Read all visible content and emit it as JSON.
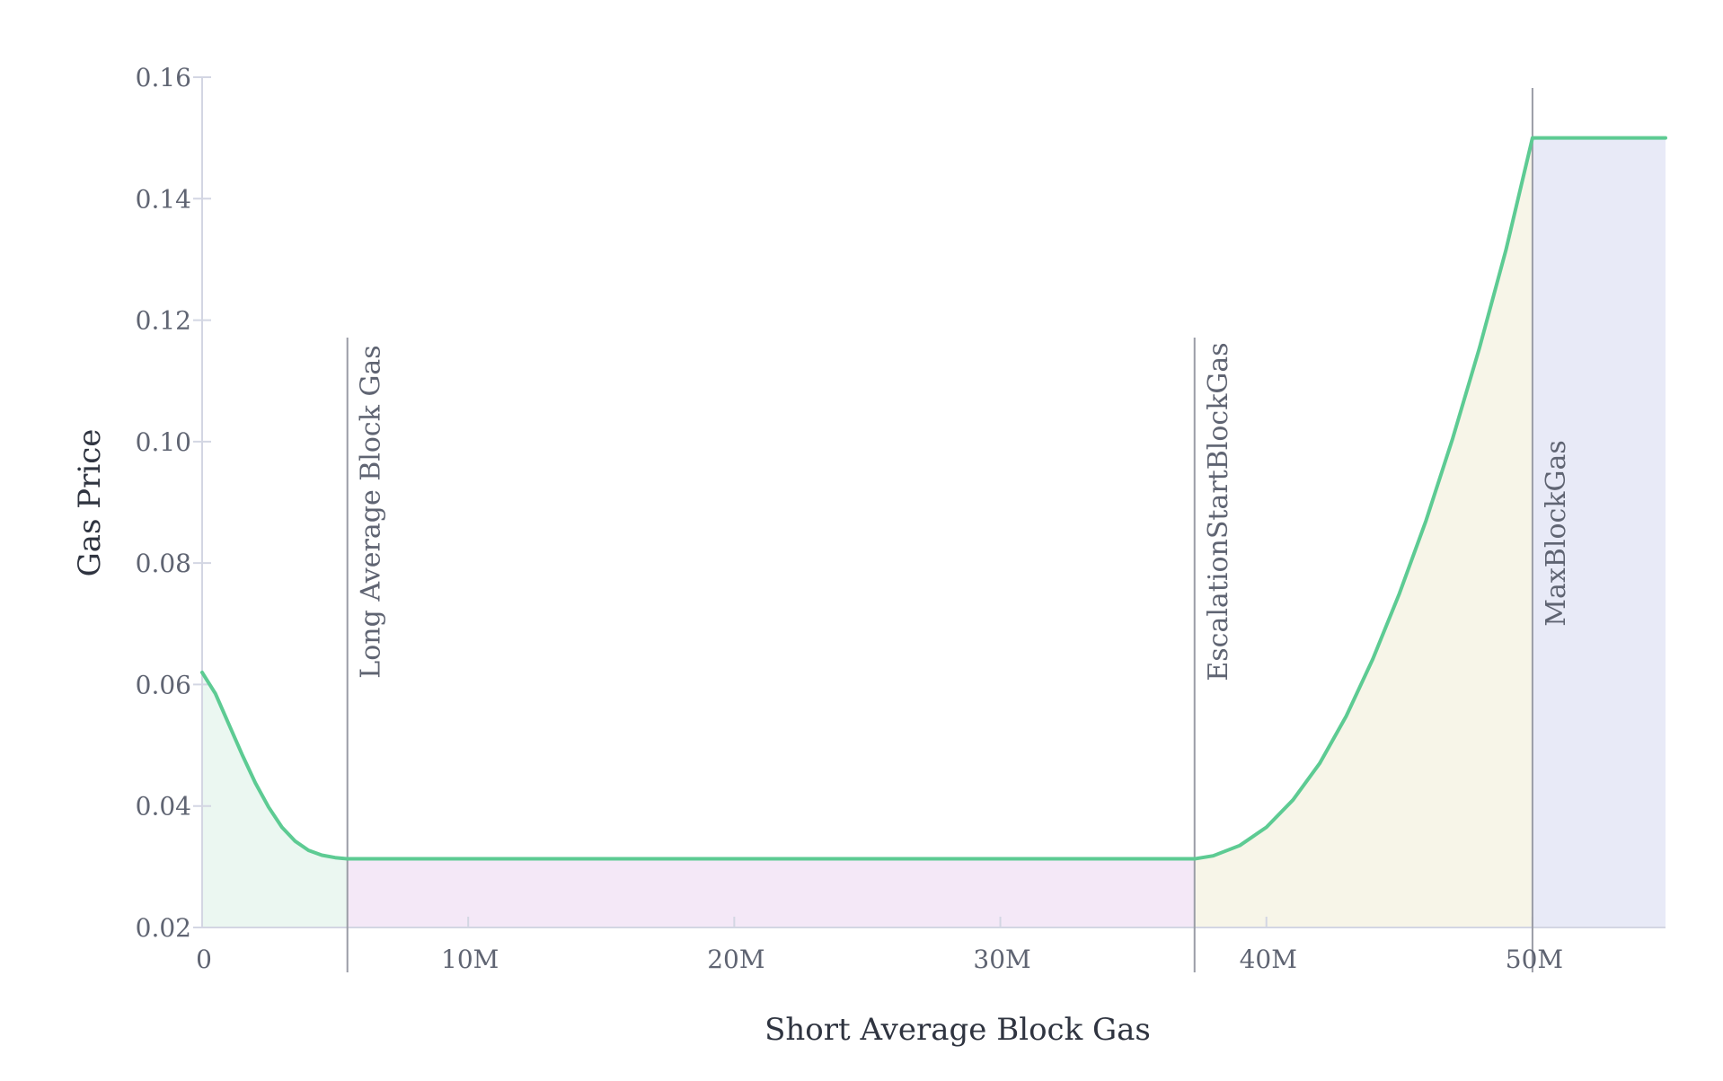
{
  "chart_data": {
    "type": "line",
    "xlabel": "Short Average Block Gas",
    "ylabel": "Gas Price",
    "xlim": [
      0,
      55000000
    ],
    "ylim": [
      0.02,
      0.16
    ],
    "x_ticks": [
      {
        "value": 0,
        "label": "0"
      },
      {
        "value": 10000000,
        "label": "10M"
      },
      {
        "value": 20000000,
        "label": "20M"
      },
      {
        "value": 30000000,
        "label": "30M"
      },
      {
        "value": 40000000,
        "label": "40M"
      },
      {
        "value": 50000000,
        "label": "50M"
      }
    ],
    "y_ticks": [
      {
        "value": 0.02,
        "label": "0.02"
      },
      {
        "value": 0.04,
        "label": "0.04"
      },
      {
        "value": 0.06,
        "label": "0.06"
      },
      {
        "value": 0.08,
        "label": "0.08"
      },
      {
        "value": 0.1,
        "label": "0.10"
      },
      {
        "value": 0.12,
        "label": "0.12"
      },
      {
        "value": 0.14,
        "label": "0.14"
      },
      {
        "value": 0.16,
        "label": "0.16"
      }
    ],
    "grid": false,
    "series": [
      {
        "color": "#5dcb93",
        "points": [
          [
            0,
            0.062
          ],
          [
            500000,
            0.0585
          ],
          [
            1000000,
            0.0535
          ],
          [
            1500000,
            0.0485
          ],
          [
            2000000,
            0.0438
          ],
          [
            2500000,
            0.0398
          ],
          [
            3000000,
            0.0365
          ],
          [
            3500000,
            0.0342
          ],
          [
            4000000,
            0.0327
          ],
          [
            4500000,
            0.0319
          ],
          [
            5000000,
            0.0315
          ],
          [
            5460000,
            0.0313
          ],
          [
            10000000,
            0.0313
          ],
          [
            20000000,
            0.0313
          ],
          [
            30000000,
            0.0313
          ],
          [
            37300000,
            0.0313
          ],
          [
            38000000,
            0.0318
          ],
          [
            39000000,
            0.0335
          ],
          [
            40000000,
            0.0365
          ],
          [
            41000000,
            0.041
          ],
          [
            42000000,
            0.047
          ],
          [
            43000000,
            0.0548
          ],
          [
            44000000,
            0.0642
          ],
          [
            45000000,
            0.075
          ],
          [
            46000000,
            0.087
          ],
          [
            47000000,
            0.1005
          ],
          [
            48000000,
            0.1153
          ],
          [
            49000000,
            0.1315
          ],
          [
            50000000,
            0.15
          ],
          [
            55000000,
            0.15
          ]
        ]
      }
    ],
    "regions": [
      {
        "x_start": 0,
        "x_end": 5460000,
        "color": "#ebf7f1",
        "follows_curve": true
      },
      {
        "x_start": 5460000,
        "x_end": 37300000,
        "color": "#f4e8f7",
        "follows_curve": true
      },
      {
        "x_start": 37300000,
        "x_end": 50000000,
        "color": "#f7f5e8",
        "follows_curve": true
      },
      {
        "x_start": 50000000,
        "x_end": 55000000,
        "color": "#e8eaf7",
        "follows_curve": true
      }
    ],
    "markers": [
      {
        "x": 5460000,
        "label": "Long Average Block Gas"
      },
      {
        "x": 37300000,
        "label": "EscalationStartBlockGas"
      },
      {
        "x": 50000000,
        "label": "MaxBlockGas"
      }
    ],
    "colors": {
      "axis": "#d3d6e3",
      "marker_line": "#9a9ca6",
      "line": "#5dcb93"
    }
  }
}
